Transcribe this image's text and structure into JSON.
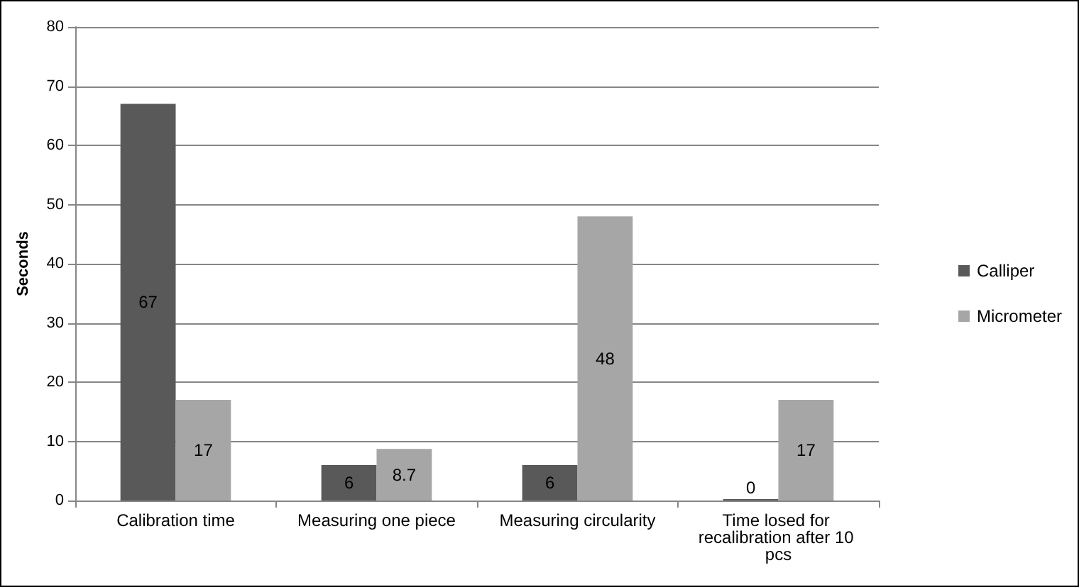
{
  "chart_data": {
    "type": "bar",
    "ylabel": "Seconds",
    "categories": [
      "Calibration time",
      "Measuring one piece",
      "Measuring circularity",
      "Time losed for recalibration after 10 pcs"
    ],
    "series": [
      {
        "name": "Calliper",
        "color": "#595959",
        "values": [
          67,
          6,
          6,
          0
        ]
      },
      {
        "name": "Micrometer",
        "color": "#a6a6a6",
        "values": [
          17,
          8.7,
          48,
          17
        ]
      }
    ],
    "ylim": [
      0,
      80
    ],
    "yticks": [
      0,
      10,
      20,
      30,
      40,
      50,
      60,
      70,
      80
    ],
    "grid": "y",
    "legend": "right",
    "data_labels": true
  }
}
